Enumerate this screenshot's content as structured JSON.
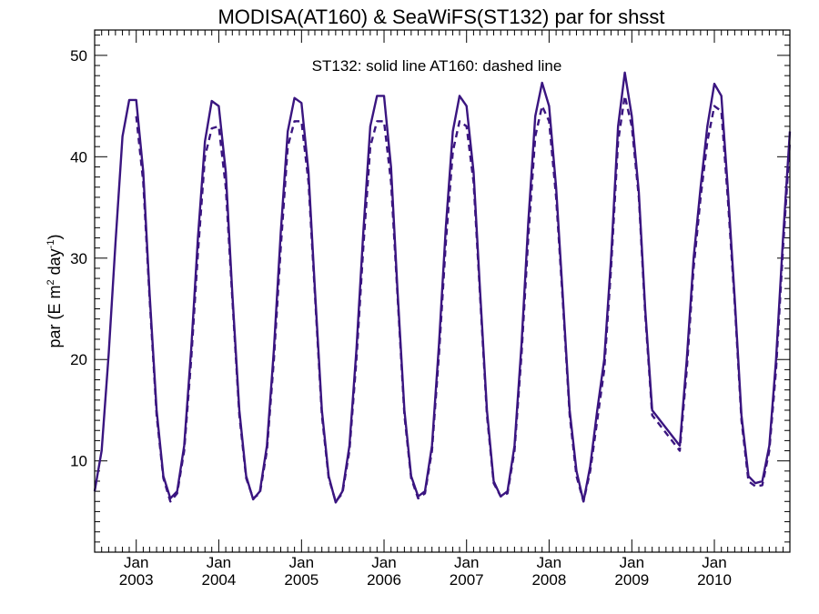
{
  "chart_data": {
    "type": "line",
    "title": "MODISA(AT160) & SeaWiFS(ST132)  par for shsst",
    "annotation": "ST132: solid line   AT160: dashed line",
    "ylabel": {
      "prefix": "par (E m",
      "sup1": "2",
      "mid": " day",
      "sup2": "-1",
      "suffix": ")"
    },
    "xlabel": "",
    "xlim": [
      "2002-07-01",
      "2010-12-01"
    ],
    "ylim": [
      1,
      52.5
    ],
    "yticks": [
      10,
      20,
      30,
      40,
      50
    ],
    "y_minor_step": 1,
    "x_ticks": [
      {
        "month": "Jan",
        "year": "2003",
        "date": "2003-01-01"
      },
      {
        "month": "Jan",
        "year": "2004",
        "date": "2004-01-01"
      },
      {
        "month": "Jan",
        "year": "2005",
        "date": "2005-01-01"
      },
      {
        "month": "Jan",
        "year": "2006",
        "date": "2006-01-01"
      },
      {
        "month": "Jan",
        "year": "2007",
        "date": "2007-01-01"
      },
      {
        "month": "Jan",
        "year": "2008",
        "date": "2008-01-01"
      },
      {
        "month": "Jan",
        "year": "2009",
        "date": "2009-01-01"
      },
      {
        "month": "Jan",
        "year": "2010",
        "date": "2010-01-01"
      }
    ],
    "grid": false,
    "legend": "none",
    "line_color": "#3a1580",
    "series": [
      {
        "name": "ST132",
        "style": "solid",
        "x": [
          "2002-07-01",
          "2002-08-01",
          "2002-09-01",
          "2002-10-01",
          "2002-11-01",
          "2002-12-01",
          "2003-01-01",
          "2003-02-01",
          "2003-03-01",
          "2003-04-01",
          "2003-05-01",
          "2003-06-01",
          "2003-07-01",
          "2003-08-01",
          "2003-09-01",
          "2003-10-01",
          "2003-11-01",
          "2003-12-01",
          "2004-01-01",
          "2004-02-01",
          "2004-03-01",
          "2004-04-01",
          "2004-05-01",
          "2004-06-01",
          "2004-07-01",
          "2004-08-01",
          "2004-09-01",
          "2004-10-01",
          "2004-11-01",
          "2004-12-01",
          "2005-01-01",
          "2005-02-01",
          "2005-03-01",
          "2005-04-01",
          "2005-05-01",
          "2005-06-01",
          "2005-07-01",
          "2005-08-01",
          "2005-09-01",
          "2005-10-01",
          "2005-11-01",
          "2005-12-01",
          "2006-01-01",
          "2006-02-01",
          "2006-03-01",
          "2006-04-01",
          "2006-05-01",
          "2006-06-01",
          "2006-07-01",
          "2006-08-01",
          "2006-09-01",
          "2006-10-01",
          "2006-11-01",
          "2006-12-01",
          "2007-01-01",
          "2007-02-01",
          "2007-03-01",
          "2007-04-01",
          "2007-05-01",
          "2007-06-01",
          "2007-07-01",
          "2007-08-01",
          "2007-09-01",
          "2007-10-01",
          "2007-11-01",
          "2007-12-01",
          "2008-01-01",
          "2008-02-01",
          "2008-03-01",
          "2008-04-01",
          "2008-05-01",
          "2008-06-01",
          "2008-07-01",
          "2008-08-01",
          "2008-09-01",
          "2008-10-01",
          "2008-11-01",
          "2008-12-01",
          "2009-01-01",
          "2009-02-01",
          "2009-03-01",
          "2009-04-01",
          "2009-08-01",
          "2009-09-01",
          "2009-10-01",
          "2009-11-01",
          "2009-12-01",
          "2010-01-01",
          "2010-02-01",
          "2010-03-01",
          "2010-04-01",
          "2010-05-01",
          "2010-06-01",
          "2010-07-01",
          "2010-08-01",
          "2010-09-01",
          "2010-10-01",
          "2010-11-01",
          "2010-12-01"
        ],
        "y": [
          7.0,
          11.0,
          20.5,
          31.5,
          42.0,
          45.6,
          45.6,
          38.5,
          26.5,
          15.0,
          8.5,
          6.3,
          7.0,
          11.5,
          21.0,
          32.0,
          41.5,
          45.5,
          45.0,
          38.5,
          26.5,
          15.0,
          8.5,
          6.2,
          7.0,
          11.5,
          21.0,
          32.5,
          42.5,
          45.8,
          45.3,
          38.5,
          27.0,
          15.0,
          8.5,
          5.9,
          7.0,
          11.5,
          21.0,
          32.5,
          43.0,
          46.0,
          46.0,
          39.0,
          27.0,
          15.0,
          8.5,
          6.5,
          7.0,
          11.5,
          21.5,
          33.0,
          42.5,
          46.0,
          45.0,
          38.5,
          27.0,
          15.0,
          8.0,
          6.5,
          7.0,
          11.5,
          21.5,
          33.5,
          44.0,
          47.3,
          45.0,
          37.0,
          26.5,
          15.0,
          9.0,
          6.0,
          9.5,
          15.0,
          20.0,
          30.0,
          43.0,
          48.3,
          44.0,
          36.5,
          25.0,
          15.0,
          11.5,
          20.0,
          30.0,
          37.0,
          43.0,
          47.2,
          46.0,
          37.0,
          26.0,
          14.5,
          8.5,
          7.8,
          8.0,
          11.5,
          20.0,
          32.0,
          42.5
        ]
      },
      {
        "name": "AT160",
        "style": "dashed",
        "x": [
          "2003-01-01",
          "2003-02-01",
          "2003-03-01",
          "2003-04-01",
          "2003-05-01",
          "2003-06-01",
          "2003-07-01",
          "2003-08-01",
          "2003-09-01",
          "2003-10-01",
          "2003-11-01",
          "2003-12-01",
          "2004-01-01",
          "2004-02-01",
          "2004-03-01",
          "2004-04-01",
          "2004-05-01",
          "2004-06-01",
          "2004-07-01",
          "2004-08-01",
          "2004-09-01",
          "2004-10-01",
          "2004-11-01",
          "2004-12-01",
          "2005-01-01",
          "2005-02-01",
          "2005-03-01",
          "2005-04-01",
          "2005-05-01",
          "2005-06-01",
          "2005-07-01",
          "2005-08-01",
          "2005-09-01",
          "2005-10-01",
          "2005-11-01",
          "2005-12-01",
          "2006-01-01",
          "2006-02-01",
          "2006-03-01",
          "2006-04-01",
          "2006-05-01",
          "2006-06-01",
          "2006-07-01",
          "2006-08-01",
          "2006-09-01",
          "2006-10-01",
          "2006-11-01",
          "2006-12-01",
          "2007-01-01",
          "2007-02-01",
          "2007-03-01",
          "2007-04-01",
          "2007-05-01",
          "2007-06-01",
          "2007-07-01",
          "2007-08-01",
          "2007-09-01",
          "2007-10-01",
          "2007-11-01",
          "2007-12-01",
          "2008-01-01",
          "2008-02-01",
          "2008-03-01",
          "2008-04-01",
          "2008-05-01",
          "2008-06-01",
          "2008-07-01",
          "2008-08-01",
          "2008-09-01",
          "2008-10-01",
          "2008-11-01",
          "2008-12-01",
          "2009-01-01",
          "2009-02-01",
          "2009-03-01",
          "2009-04-01",
          "2009-08-01",
          "2009-09-01",
          "2009-10-01",
          "2009-11-01",
          "2009-12-01",
          "2010-01-01",
          "2010-02-01",
          "2010-03-01",
          "2010-04-01",
          "2010-05-01",
          "2010-06-01",
          "2010-07-01",
          "2010-08-01",
          "2010-09-01",
          "2010-10-01",
          "2010-11-01",
          "2010-12-01"
        ],
        "y": [
          44.0,
          37.5,
          26.0,
          14.5,
          8.3,
          6.0,
          6.8,
          11.0,
          20.0,
          30.5,
          40.0,
          42.8,
          43.0,
          37.0,
          26.0,
          14.5,
          8.3,
          6.3,
          6.8,
          11.0,
          20.0,
          31.0,
          41.0,
          43.5,
          43.5,
          37.5,
          26.5,
          14.5,
          8.3,
          6.0,
          6.8,
          11.0,
          20.0,
          31.0,
          41.0,
          43.5,
          43.5,
          37.5,
          26.5,
          14.5,
          8.3,
          6.3,
          6.8,
          11.0,
          20.5,
          31.5,
          40.5,
          43.5,
          43.0,
          37.5,
          26.5,
          14.5,
          7.8,
          6.5,
          6.8,
          11.0,
          20.5,
          32.0,
          42.0,
          45.0,
          43.5,
          36.0,
          26.0,
          14.5,
          8.5,
          6.0,
          9.0,
          14.0,
          19.0,
          29.0,
          41.5,
          46.0,
          43.0,
          36.0,
          24.5,
          14.5,
          11.0,
          19.0,
          29.0,
          36.0,
          41.5,
          45.0,
          44.5,
          36.0,
          25.5,
          14.0,
          8.0,
          7.5,
          7.6,
          11.0,
          19.0,
          31.0,
          41.5
        ]
      }
    ]
  }
}
